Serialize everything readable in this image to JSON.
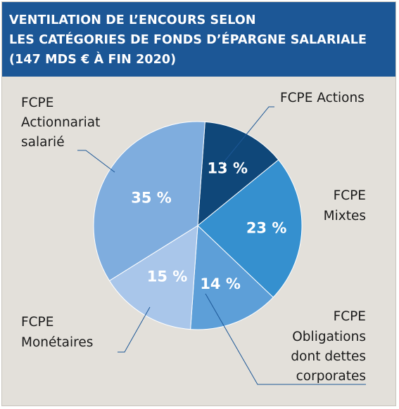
{
  "chart_data": {
    "type": "pie",
    "title_lines": [
      "VENTILATION DE L’ENCOURS SELON",
      "LES CATÉGORIES DE FONDS D’ÉPARGNE SALARIALE",
      "(147 MDS € À FIN 2020)"
    ],
    "slices": [
      {
        "label_lines": [
          "FCPE Actions"
        ],
        "value": 13,
        "value_label": "13 %",
        "color": "#0f4779"
      },
      {
        "label_lines": [
          "FCPE",
          "Mixtes"
        ],
        "value": 23,
        "value_label": "23 %",
        "color": "#3590cf"
      },
      {
        "label_lines": [
          "FCPE",
          "Obligations",
          "dont dettes",
          "corporates"
        ],
        "value": 14,
        "value_label": "14 %",
        "color": "#5d9fd8"
      },
      {
        "label_lines": [
          "FCPE",
          "Monétaires"
        ],
        "value": 15,
        "value_label": "15 %",
        "color": "#a9c6ea"
      },
      {
        "label_lines": [
          "FCPE",
          "Actionnariat",
          "salarié"
        ],
        "value": 35,
        "value_label": "35 %",
        "color": "#7fadde"
      }
    ],
    "leader_line_color": "#1c5796",
    "background_color": "#e3e0da",
    "header_color": "#1c5796"
  }
}
